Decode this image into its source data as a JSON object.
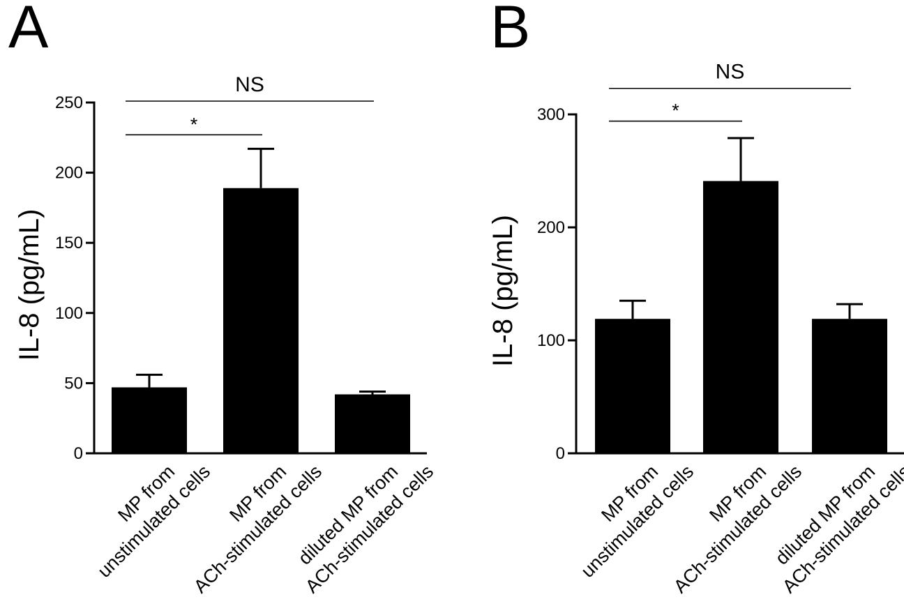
{
  "chart_data": [
    {
      "panel": "A",
      "type": "bar",
      "ylabel": "IL-8 (pg/mL)",
      "ylim": [
        0,
        250
      ],
      "yticks": [
        "0",
        "50",
        "100",
        "150",
        "200",
        "250"
      ],
      "categories": [
        [
          "MP from",
          "unstimulated cells"
        ],
        [
          "MP from",
          "ACh-stimulated cells"
        ],
        [
          "diluted MP from",
          "ACh-stimulated cells"
        ]
      ],
      "values": [
        47,
        189,
        42
      ],
      "errors": [
        9,
        28,
        2
      ],
      "significance": [
        {
          "label": "*",
          "from": 0,
          "to": 1,
          "y": 227
        },
        {
          "label": "NS",
          "from": 0,
          "to": 2,
          "y": 251
        }
      ]
    },
    {
      "panel": "B",
      "type": "bar",
      "ylabel": "IL-8 (pg/mL)",
      "ylim": [
        0,
        300
      ],
      "yticks": [
        "0",
        "100",
        "200",
        "300"
      ],
      "categories": [
        [
          "MP from",
          "unstimulated cells"
        ],
        [
          "MP from",
          "ACh-stimulated cells"
        ],
        [
          "diluted MP from",
          "ACh-stimulated cells"
        ]
      ],
      "values": [
        119,
        241,
        119
      ],
      "errors": [
        16,
        38,
        13
      ],
      "significance": [
        {
          "label": "*",
          "from": 0,
          "to": 1,
          "y": 294
        },
        {
          "label": "NS",
          "from": 0,
          "to": 2,
          "y": 323
        }
      ]
    }
  ]
}
